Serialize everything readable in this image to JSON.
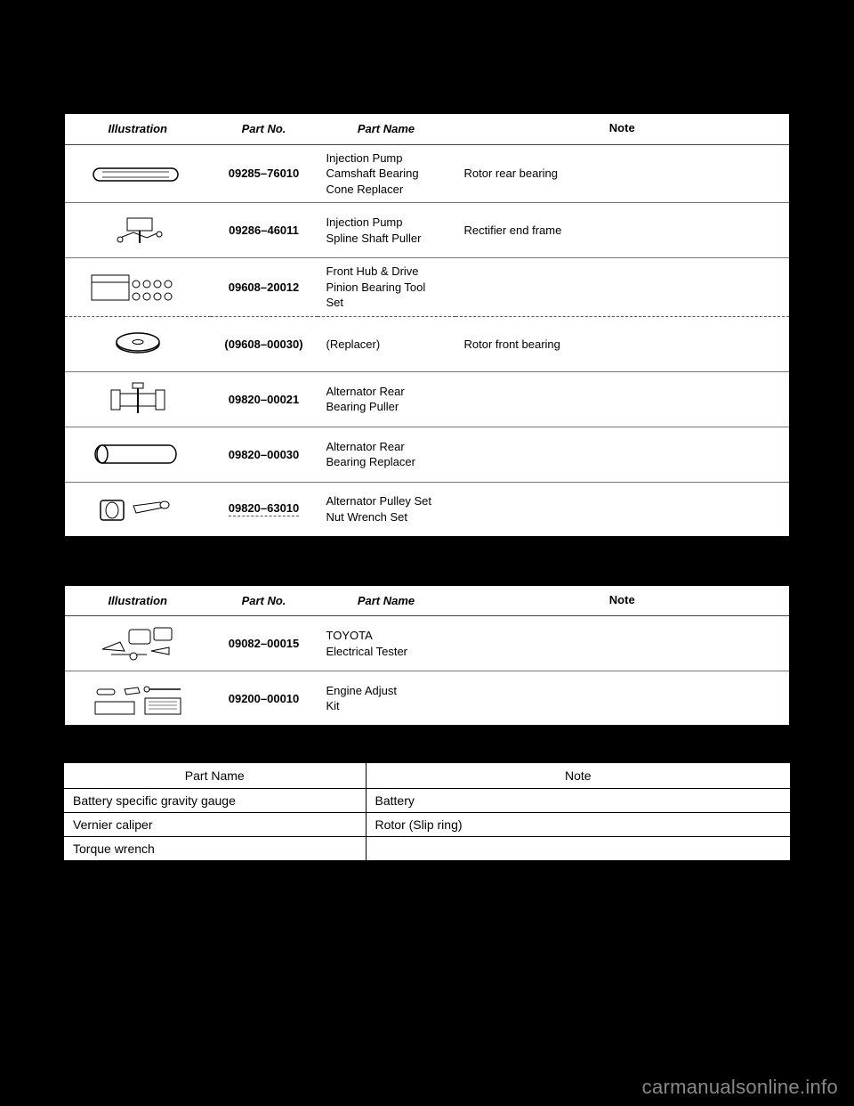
{
  "tools_table": {
    "headers": {
      "illustration": "Illustration",
      "part_no": "Part No.",
      "part_name": "Part Name",
      "note": "Note"
    },
    "rows": [
      {
        "part_no": "09285–76010",
        "part_name": "Injection Pump\nCamshaft Bearing\nCone Replacer",
        "note": "Rotor rear bearing",
        "sketch": "tube"
      },
      {
        "part_no": "09286–46011",
        "part_name": "Injection Pump\nSpline Shaft Puller",
        "note": "Rectifier end frame",
        "sketch": "puller"
      },
      {
        "part_no": "09608–20012",
        "part_name": "Front Hub & Drive\nPinion Bearing Tool\nSet",
        "note": "",
        "sketch": "boxset"
      },
      {
        "part_no": "(09608–00030)",
        "part_name": "(Replacer)",
        "note": "Rotor front bearing",
        "sketch": "disc",
        "dashed_top": true
      },
      {
        "part_no": "09820–00021",
        "part_name": "Alternator Rear\nBearing Puller",
        "note": "",
        "sketch": "clamp"
      },
      {
        "part_no": "09820–00030",
        "part_name": "Alternator Rear\nBearing Replacer",
        "note": "",
        "sketch": "cylinder"
      },
      {
        "part_no": "09820–63010",
        "part_name": "Alternator Pulley Set\nNut Wrench Set",
        "note": "",
        "sketch": "wrenchset",
        "dashed_under_partno": true
      }
    ]
  },
  "tester_table": {
    "headers": {
      "illustration": "Illustration",
      "part_no": "Part No.",
      "part_name": "Part Name",
      "note": "Note"
    },
    "rows": [
      {
        "part_no": "09082–00015",
        "part_name": "TOYOTA\nElectrical Tester",
        "note": "",
        "sketch": "tester"
      },
      {
        "part_no": "09200–00010",
        "part_name": "Engine Adjust\nKit",
        "note": "",
        "sketch": "kit"
      }
    ]
  },
  "equipment_table": {
    "headers": {
      "name": "Part Name",
      "note": "Note"
    },
    "rows": [
      {
        "name": "Battery specific gravity gauge",
        "note": "Battery"
      },
      {
        "name": "Vernier caliper",
        "note": "Rotor (Slip ring)"
      },
      {
        "name": "Torque wrench",
        "note": ""
      }
    ]
  },
  "watermark": "carmanualsonline.info",
  "colors": {
    "page_bg": "#000000",
    "table_bg": "#ffffff",
    "border": "#000000",
    "row_border": "#777777"
  }
}
